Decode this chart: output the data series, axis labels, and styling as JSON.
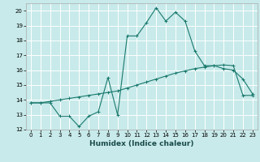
{
  "xlabel": "Humidex (Indice chaleur)",
  "ylabel": "",
  "bg_color": "#c8eaea",
  "grid_color": "#ffffff",
  "line_color": "#1a7a6e",
  "xlim": [
    -0.5,
    23.5
  ],
  "ylim": [
    12,
    20.5
  ],
  "xticks": [
    0,
    1,
    2,
    3,
    4,
    5,
    6,
    7,
    8,
    9,
    10,
    11,
    12,
    13,
    14,
    15,
    16,
    17,
    18,
    19,
    20,
    21,
    22,
    23
  ],
  "yticks": [
    12,
    13,
    14,
    15,
    16,
    17,
    18,
    19,
    20
  ],
  "line1_x": [
    0,
    1,
    2,
    3,
    4,
    5,
    6,
    7,
    8,
    9,
    10,
    11,
    12,
    13,
    14,
    15,
    16,
    17,
    18,
    19,
    20,
    21,
    22,
    23
  ],
  "line1_y": [
    13.8,
    13.8,
    13.8,
    12.9,
    12.9,
    12.2,
    12.9,
    13.2,
    15.5,
    13.0,
    18.3,
    18.3,
    19.2,
    20.2,
    19.3,
    19.9,
    19.3,
    17.3,
    16.3,
    16.3,
    16.1,
    16.0,
    15.4,
    14.4
  ],
  "line2_x": [
    0,
    1,
    2,
    3,
    4,
    5,
    6,
    7,
    8,
    9,
    10,
    11,
    12,
    13,
    14,
    15,
    16,
    17,
    18,
    19,
    20,
    21,
    22,
    23
  ],
  "line2_y": [
    13.8,
    13.8,
    13.9,
    14.0,
    14.1,
    14.2,
    14.3,
    14.4,
    14.5,
    14.6,
    14.8,
    15.0,
    15.2,
    15.4,
    15.6,
    15.8,
    15.95,
    16.1,
    16.2,
    16.3,
    16.35,
    16.3,
    14.3,
    14.3
  ]
}
